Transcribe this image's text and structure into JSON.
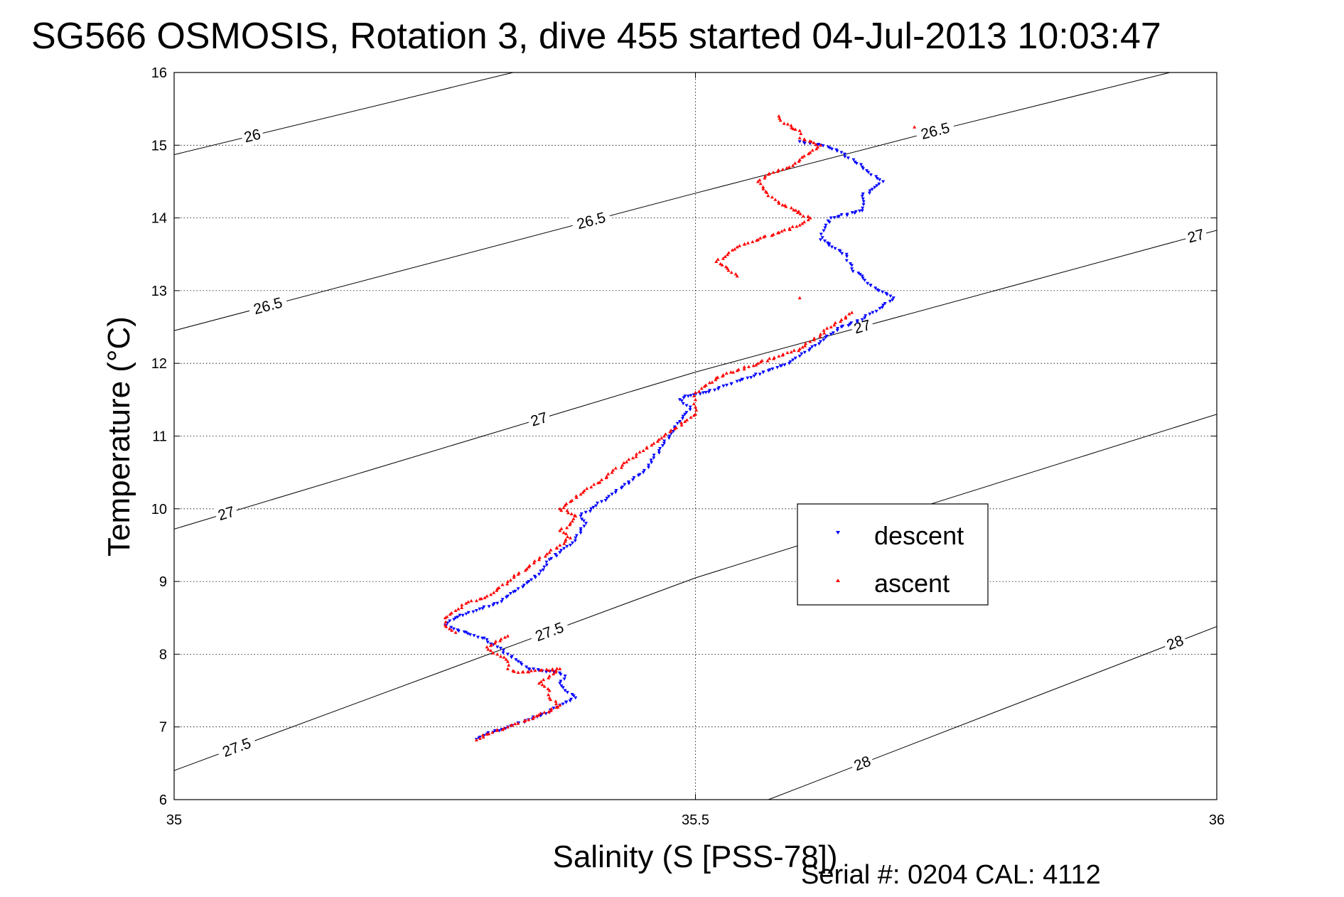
{
  "chart_data": {
    "type": "scatter",
    "title": "SG566 OSMOSIS, Rotation 3, dive 455 started 04-Jul-2013 10:03:47",
    "xlabel": "Salinity (S [PSS-78])",
    "ylabel": "Temperature (°C)",
    "xlim": [
      35,
      36
    ],
    "ylim": [
      6,
      16
    ],
    "xticks": [
      "35",
      "35.5",
      "36"
    ],
    "yticks": [
      "6",
      "7",
      "8",
      "9",
      "10",
      "11",
      "12",
      "13",
      "14",
      "15",
      "16"
    ],
    "grid": true,
    "legend_position": "right-center",
    "colors": {
      "descent": "#0000ff",
      "ascent": "#ff0000",
      "contour": "#000000"
    },
    "density_contours": [
      {
        "label": "26",
        "points": [
          [
            35.0,
            14.87
          ],
          [
            35.325,
            16.0
          ]
        ],
        "label_x": 35.075
      },
      {
        "label": "26.5",
        "points": [
          [
            35.0,
            12.45
          ],
          [
            35.5,
            14.34
          ],
          [
            35.75,
            15.27
          ],
          [
            35.955,
            16.0
          ]
        ],
        "label_x": 35.09,
        "label_x2": 35.4
      },
      {
        "label": "26.5",
        "points": [],
        "label_x": 35.73
      },
      {
        "label": "27",
        "points": [
          [
            35.0,
            9.72
          ],
          [
            35.5,
            11.88
          ],
          [
            36.0,
            13.83
          ]
        ],
        "label_x": 35.05,
        "label_x2": 35.35,
        "label_x3": 35.66,
        "label_x4": 35.98
      },
      {
        "label": "27.5",
        "points": [
          [
            35.0,
            6.4
          ],
          [
            35.5,
            9.05
          ],
          [
            36.0,
            11.3
          ]
        ],
        "label_x": 35.06,
        "label_x2": 35.36
      },
      {
        "label": "28",
        "points": [
          [
            35.57,
            6.0
          ],
          [
            36.0,
            8.38
          ]
        ],
        "label_x": 35.66,
        "label_x2": 35.96
      }
    ],
    "series": [
      {
        "name": "descent",
        "marker": "triangle-down",
        "points": [
          [
            35.29,
            6.83
          ],
          [
            35.3,
            6.9
          ],
          [
            35.32,
            7.0
          ],
          [
            35.34,
            7.1
          ],
          [
            35.36,
            7.2
          ],
          [
            35.37,
            7.3
          ],
          [
            35.385,
            7.4
          ],
          [
            35.375,
            7.5
          ],
          [
            35.37,
            7.6
          ],
          [
            35.375,
            7.7
          ],
          [
            35.365,
            7.75
          ],
          [
            35.34,
            7.8
          ],
          [
            35.33,
            7.9
          ],
          [
            35.32,
            8.0
          ],
          [
            35.31,
            8.1
          ],
          [
            35.3,
            8.2
          ],
          [
            35.28,
            8.3
          ],
          [
            35.26,
            8.4
          ],
          [
            35.27,
            8.5
          ],
          [
            35.29,
            8.6
          ],
          [
            35.31,
            8.7
          ],
          [
            35.32,
            8.8
          ],
          [
            35.33,
            8.9
          ],
          [
            35.34,
            9.0
          ],
          [
            35.35,
            9.1
          ],
          [
            35.355,
            9.2
          ],
          [
            35.36,
            9.3
          ],
          [
            35.37,
            9.4
          ],
          [
            35.38,
            9.5
          ],
          [
            35.385,
            9.6
          ],
          [
            35.39,
            9.7
          ],
          [
            35.395,
            9.8
          ],
          [
            35.39,
            9.9
          ],
          [
            35.4,
            10.0
          ],
          [
            35.41,
            10.1
          ],
          [
            35.42,
            10.2
          ],
          [
            35.43,
            10.3
          ],
          [
            35.44,
            10.4
          ],
          [
            35.45,
            10.5
          ],
          [
            35.455,
            10.6
          ],
          [
            35.46,
            10.7
          ],
          [
            35.465,
            10.8
          ],
          [
            35.47,
            10.9
          ],
          [
            35.475,
            11.0
          ],
          [
            35.48,
            11.1
          ],
          [
            35.485,
            11.2
          ],
          [
            35.49,
            11.3
          ],
          [
            35.495,
            11.4
          ],
          [
            35.485,
            11.5
          ],
          [
            35.49,
            11.55
          ],
          [
            35.51,
            11.6
          ],
          [
            35.53,
            11.7
          ],
          [
            35.55,
            11.8
          ],
          [
            35.57,
            11.9
          ],
          [
            35.59,
            12.0
          ],
          [
            35.6,
            12.1
          ],
          [
            35.61,
            12.2
          ],
          [
            35.62,
            12.3
          ],
          [
            35.63,
            12.4
          ],
          [
            35.64,
            12.5
          ],
          [
            35.66,
            12.6
          ],
          [
            35.67,
            12.7
          ],
          [
            35.68,
            12.8
          ],
          [
            35.69,
            12.9
          ],
          [
            35.665,
            13.1
          ],
          [
            35.66,
            13.2
          ],
          [
            35.65,
            13.3
          ],
          [
            35.645,
            13.5
          ],
          [
            35.62,
            13.7
          ],
          [
            35.625,
            13.9
          ],
          [
            35.63,
            14.0
          ],
          [
            35.66,
            14.1
          ],
          [
            35.66,
            14.3
          ],
          [
            35.68,
            14.5
          ],
          [
            35.66,
            14.7
          ],
          [
            35.64,
            14.9
          ],
          [
            35.62,
            15.0
          ],
          [
            35.6,
            15.05
          ]
        ]
      },
      {
        "name": "ascent",
        "marker": "triangle-up",
        "points": [
          [
            35.29,
            6.82
          ],
          [
            35.3,
            6.9
          ],
          [
            35.32,
            7.0
          ],
          [
            35.34,
            7.1
          ],
          [
            35.355,
            7.2
          ],
          [
            35.37,
            7.3
          ],
          [
            35.36,
            7.4
          ],
          [
            35.36,
            7.5
          ],
          [
            35.35,
            7.6
          ],
          [
            35.36,
            7.7
          ],
          [
            35.37,
            7.8
          ],
          [
            35.33,
            7.75
          ],
          [
            35.32,
            7.8
          ],
          [
            35.32,
            7.9
          ],
          [
            35.31,
            8.0
          ],
          [
            35.3,
            8.1
          ],
          [
            35.32,
            8.25
          ],
          [
            35.27,
            8.3
          ],
          [
            35.26,
            8.4
          ],
          [
            35.26,
            8.5
          ],
          [
            35.27,
            8.6
          ],
          [
            35.28,
            8.7
          ],
          [
            35.3,
            8.8
          ],
          [
            35.31,
            8.9
          ],
          [
            35.32,
            9.0
          ],
          [
            35.33,
            9.1
          ],
          [
            35.34,
            9.2
          ],
          [
            35.35,
            9.3
          ],
          [
            35.36,
            9.4
          ],
          [
            35.37,
            9.5
          ],
          [
            35.38,
            9.6
          ],
          [
            35.37,
            9.7
          ],
          [
            35.38,
            9.8
          ],
          [
            35.385,
            9.9
          ],
          [
            35.37,
            10.0
          ],
          [
            35.38,
            10.1
          ],
          [
            35.39,
            10.2
          ],
          [
            35.4,
            10.3
          ],
          [
            35.41,
            10.4
          ],
          [
            35.42,
            10.5
          ],
          [
            35.43,
            10.6
          ],
          [
            35.44,
            10.7
          ],
          [
            35.45,
            10.8
          ],
          [
            35.46,
            10.9
          ],
          [
            35.47,
            11.0
          ],
          [
            35.48,
            11.1
          ],
          [
            35.49,
            11.2
          ],
          [
            35.5,
            11.3
          ],
          [
            35.5,
            11.4
          ],
          [
            35.5,
            11.5
          ],
          [
            35.5,
            11.6
          ],
          [
            35.51,
            11.7
          ],
          [
            35.52,
            11.8
          ],
          [
            35.54,
            11.9
          ],
          [
            35.56,
            12.0
          ],
          [
            35.58,
            12.1
          ],
          [
            35.6,
            12.2
          ],
          [
            35.61,
            12.3
          ],
          [
            35.62,
            12.4
          ],
          [
            35.63,
            12.5
          ],
          [
            35.64,
            12.6
          ],
          [
            35.65,
            12.7
          ],
          [
            35.6,
            12.9
          ],
          [
            35.54,
            13.2
          ],
          [
            35.52,
            13.4
          ],
          [
            35.54,
            13.6
          ],
          [
            35.56,
            13.7
          ],
          [
            35.58,
            13.8
          ],
          [
            35.6,
            13.9
          ],
          [
            35.61,
            14.0
          ],
          [
            35.58,
            14.2
          ],
          [
            35.565,
            14.4
          ],
          [
            35.56,
            14.5
          ],
          [
            35.57,
            14.6
          ],
          [
            35.59,
            14.7
          ],
          [
            35.6,
            14.8
          ],
          [
            35.61,
            14.9
          ],
          [
            35.62,
            15.0
          ],
          [
            35.6,
            15.1
          ],
          [
            35.6,
            15.2
          ],
          [
            35.585,
            15.3
          ],
          [
            35.58,
            15.4
          ],
          [
            35.71,
            15.25
          ]
        ]
      }
    ],
    "footer": "Serial #: 0204  CAL: 4112"
  }
}
